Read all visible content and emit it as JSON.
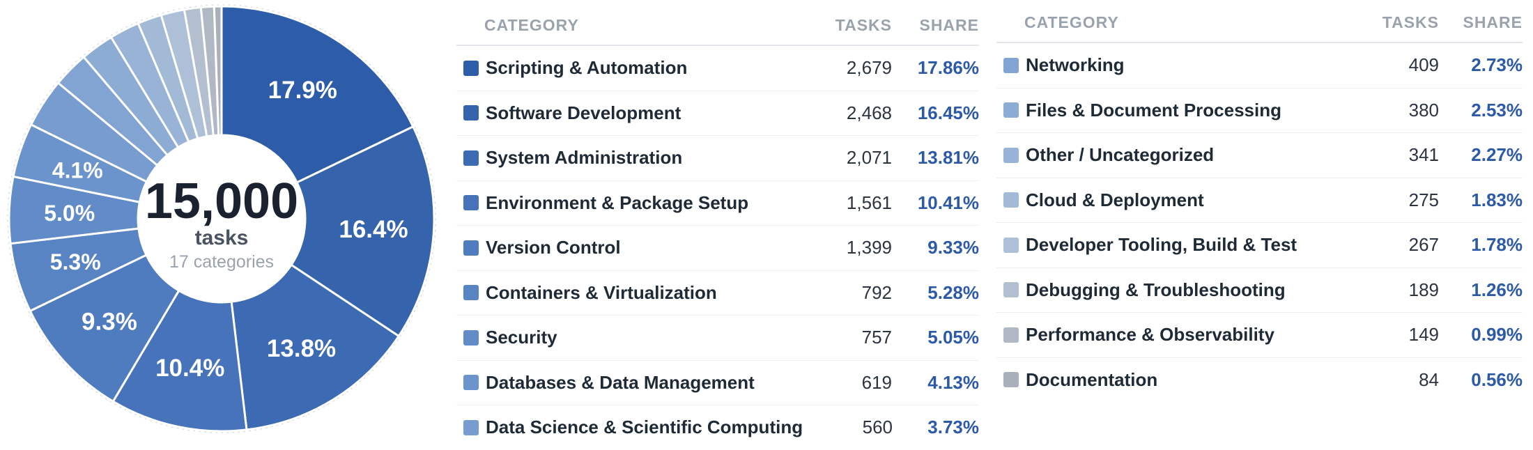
{
  "center": {
    "total": "15,000",
    "unit": "tasks",
    "sub": "17 categories"
  },
  "columns": {
    "category": "CATEGORY",
    "tasks": "TASKS",
    "share": "SHARE"
  },
  "chart_data": {
    "type": "pie",
    "total": 15000,
    "categories": [
      {
        "name": "Scripting & Automation",
        "tasks": 2679,
        "tasks_label": "2,679",
        "share": 17.86,
        "share_label": "17.86%",
        "slice_label": "17.9%",
        "color": "#2d5ca8"
      },
      {
        "name": "Software Development",
        "tasks": 2468,
        "tasks_label": "2,468",
        "share": 16.45,
        "share_label": "16.45%",
        "slice_label": "16.4%",
        "color": "#3563ac"
      },
      {
        "name": "System Administration",
        "tasks": 2071,
        "tasks_label": "2,071",
        "share": 13.81,
        "share_label": "13.81%",
        "slice_label": "13.8%",
        "color": "#3d6bb3"
      },
      {
        "name": "Environment & Package Setup",
        "tasks": 1561,
        "tasks_label": "1,561",
        "share": 10.41,
        "share_label": "10.41%",
        "slice_label": "10.4%",
        "color": "#4673b9"
      },
      {
        "name": "Version Control",
        "tasks": 1399,
        "tasks_label": "1,399",
        "share": 9.33,
        "share_label": "9.33%",
        "slice_label": "9.3%",
        "color": "#4f7cbf"
      },
      {
        "name": "Containers & Virtualization",
        "tasks": 792,
        "tasks_label": "792",
        "share": 5.28,
        "share_label": "5.28%",
        "slice_label": "5.3%",
        "color": "#5884c4"
      },
      {
        "name": "Security",
        "tasks": 757,
        "tasks_label": "757",
        "share": 5.05,
        "share_label": "5.05%",
        "slice_label": "5.0%",
        "color": "#628cc8"
      },
      {
        "name": "Databases & Data Management",
        "tasks": 619,
        "tasks_label": "619",
        "share": 4.13,
        "share_label": "4.13%",
        "slice_label": "4.1%",
        "color": "#6c94cc"
      },
      {
        "name": "Data Science & Scientific Computing",
        "tasks": 560,
        "tasks_label": "560",
        "share": 3.73,
        "share_label": "3.73%",
        "slice_label": "",
        "color": "#779ccf"
      },
      {
        "name": "Networking",
        "tasks": 409,
        "tasks_label": "409",
        "share": 2.73,
        "share_label": "2.73%",
        "slice_label": "",
        "color": "#82a4d2"
      },
      {
        "name": "Files & Document Processing",
        "tasks": 380,
        "tasks_label": "380",
        "share": 2.53,
        "share_label": "2.53%",
        "slice_label": "",
        "color": "#8dacd4"
      },
      {
        "name": "Other / Uncategorized",
        "tasks": 341,
        "tasks_label": "341",
        "share": 2.27,
        "share_label": "2.27%",
        "slice_label": "",
        "color": "#98b3d6"
      },
      {
        "name": "Cloud & Deployment",
        "tasks": 275,
        "tasks_label": "275",
        "share": 1.83,
        "share_label": "1.83%",
        "slice_label": "",
        "color": "#a3bad7"
      },
      {
        "name": "Developer Tooling, Build & Test",
        "tasks": 267,
        "tasks_label": "267",
        "share": 1.78,
        "share_label": "1.78%",
        "slice_label": "",
        "color": "#adc0d7"
      },
      {
        "name": "Debugging & Troubleshooting",
        "tasks": 189,
        "tasks_label": "189",
        "share": 1.26,
        "share_label": "1.26%",
        "slice_label": "",
        "color": "#b3bfcf"
      },
      {
        "name": "Performance & Observability",
        "tasks": 149,
        "tasks_label": "149",
        "share": 0.99,
        "share_label": "0.99%",
        "slice_label": "",
        "color": "#b0b8c4"
      },
      {
        "name": "Documentation",
        "tasks": 84,
        "tasks_label": "84",
        "share": 0.56,
        "share_label": "0.56%",
        "slice_label": "",
        "color": "#a9b0ba"
      }
    ]
  }
}
